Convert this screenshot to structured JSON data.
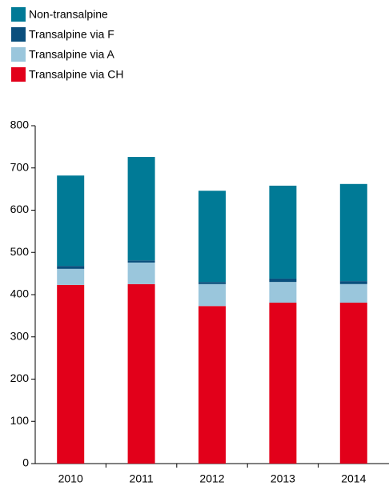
{
  "chart_data": {
    "type": "stacked_bar",
    "categories": [
      "2010",
      "2011",
      "2012",
      "2013",
      "2014"
    ],
    "series": [
      {
        "name": "Transalpine via CH",
        "color": "#e2001a",
        "values": [
          423,
          425,
          373,
          381,
          381
        ]
      },
      {
        "name": "Transalpine via A",
        "color": "#9ac6dc",
        "values": [
          38,
          51,
          52,
          49,
          44
        ]
      },
      {
        "name": "Transalpine via F",
        "color": "#0a4f7d",
        "values": [
          7,
          5,
          5,
          8,
          7
        ]
      },
      {
        "name": "Non-transalpine",
        "color": "#007a96",
        "values": [
          214,
          245,
          216,
          220,
          230
        ]
      }
    ],
    "ylim": [
      0,
      800
    ],
    "yticks": [
      0,
      100,
      200,
      300,
      400,
      500,
      600,
      700,
      800
    ],
    "grid": false,
    "legend": "top-left"
  }
}
